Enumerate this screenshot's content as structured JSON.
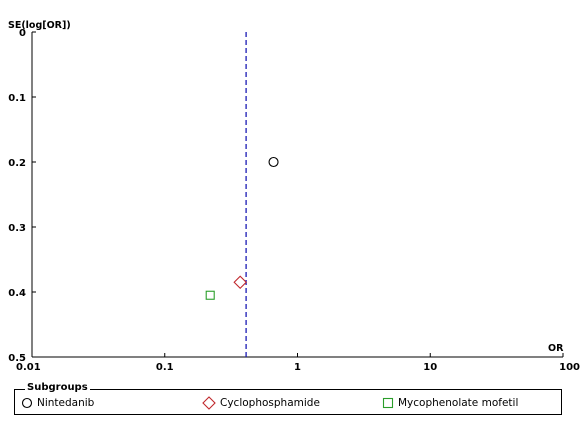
{
  "chart_data": {
    "type": "scatter",
    "plot_kind": "funnel plot",
    "xlabel": "OR",
    "ylabel": "SE(log[OR])",
    "x_scale": "log",
    "xlim": [
      0.01,
      100
    ],
    "ylim": [
      0,
      0.5
    ],
    "y_inverted": true,
    "x_ticks": [
      "0.01",
      "0.1",
      "1",
      "10",
      "100"
    ],
    "y_ticks": [
      "0",
      "0.1",
      "0.2",
      "0.3",
      "0.4",
      "0.5"
    ],
    "reference_line": {
      "x": 0.41,
      "style": "dashed",
      "color": "#1a1ab4"
    },
    "series": [
      {
        "name": "Nintedanib",
        "marker": "circle",
        "color": "#000000",
        "points": [
          {
            "x": 0.66,
            "y": 0.2
          }
        ]
      },
      {
        "name": "Cyclophosphamide",
        "marker": "diamond",
        "color": "#c0282d",
        "points": [
          {
            "x": 0.37,
            "y": 0.385
          }
        ]
      },
      {
        "name": "Mycophenolate mofetil",
        "marker": "square",
        "color": "#2a9e2a",
        "points": [
          {
            "x": 0.22,
            "y": 0.405
          }
        ]
      }
    ],
    "grid": false,
    "legend": {
      "title": "Subgroups",
      "position": "bottom"
    }
  }
}
